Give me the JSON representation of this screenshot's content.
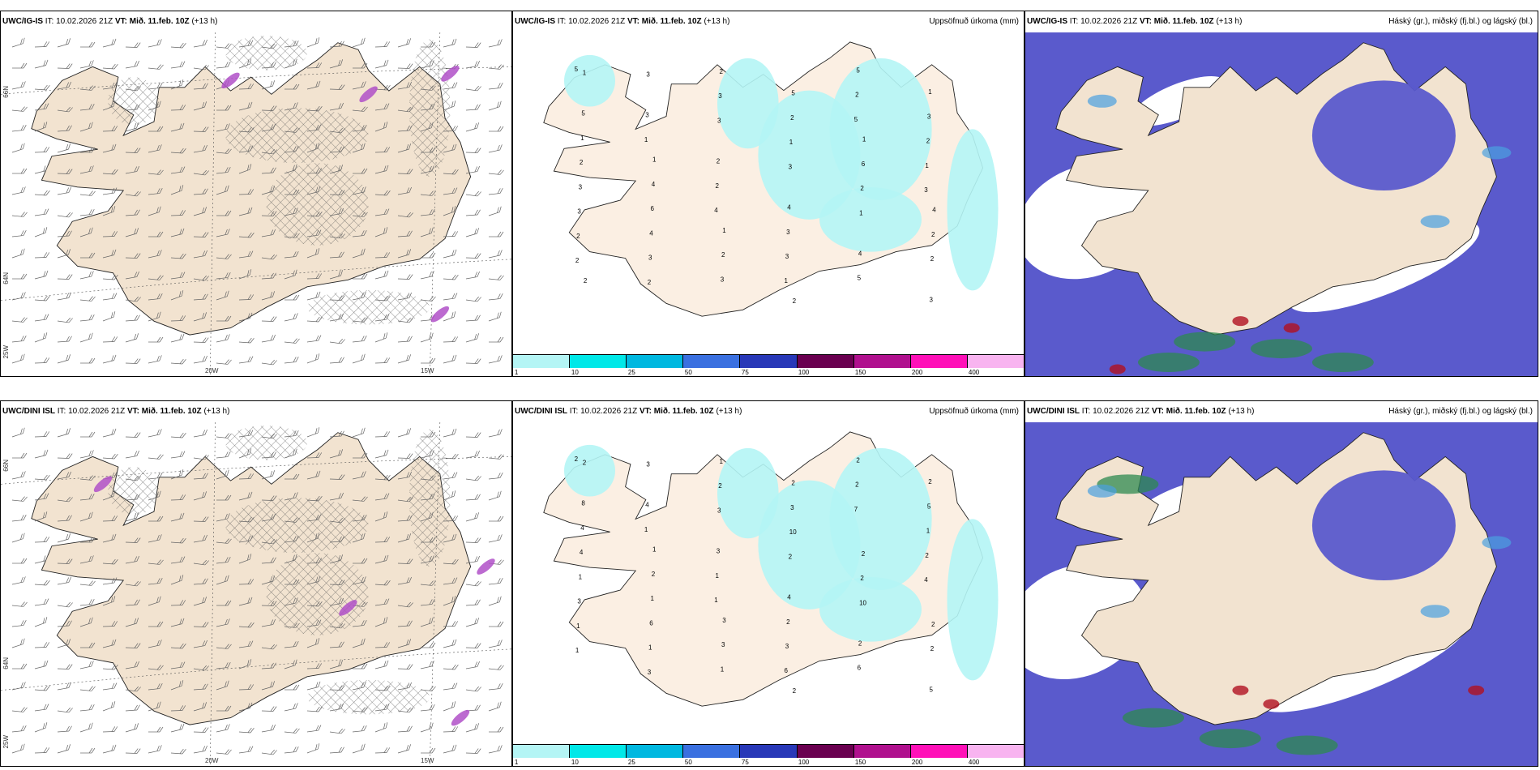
{
  "rows": [
    {
      "model": "UWC/IG-IS",
      "it": "IT: 10.02.2026 21Z",
      "vt_label": "VT:",
      "vt_value": "Mið. 11.feb. 10Z",
      "lead": "(+13 h)"
    },
    {
      "model": "UWC/DINI ISL",
      "it": "IT: 10.02.2026 21Z",
      "vt_label": "VT:",
      "vt_value": "Mið. 11.feb. 10Z",
      "lead": "(+13 h)"
    }
  ],
  "precip_title": "Uppsöfnuð úrkoma (mm)",
  "cloud_title": "Háský (gr.), miðský (fj.bl.) og lágský (bl.)",
  "axis_labels": {
    "lon_20w": "20W",
    "lon_15w": "15W",
    "lat_66n": "66N",
    "lat_64n": "64N",
    "lon_25w": "25W"
  },
  "colorbar": {
    "labels": [
      "1",
      "10",
      "25",
      "50",
      "75",
      "100",
      "150",
      "200",
      "400"
    ],
    "colors": [
      "#b4f5f5",
      "#00e8e8",
      "#00b8e0",
      "#3a70e0",
      "#2838b8",
      "#6a0050",
      "#b0108e",
      "#ff10b8",
      "#f8b4f0"
    ]
  },
  "precip_values_top": [
    "5",
    "1",
    "4",
    "1",
    "5",
    "3",
    "2",
    "3",
    "2",
    "3",
    "2",
    "1",
    "2",
    "3",
    "2",
    "3",
    "5",
    "2",
    "3",
    "2",
    "3",
    "4",
    "5",
    "3",
    "3",
    "3",
    "3",
    "3",
    "4",
    "1",
    "2",
    "4",
    "2",
    "1",
    "1",
    "3",
    "1",
    "6",
    "3",
    "2",
    "2",
    "2",
    "5",
    "4",
    "2",
    "5",
    "6",
    "2",
    "1",
    "1",
    "1",
    "2",
    "1",
    "4",
    "2"
  ],
  "precip_values_bottom": [
    "2",
    "1",
    "1",
    "6",
    "7",
    "4",
    "1",
    "4",
    "1",
    "3",
    "2",
    "2",
    "1",
    "3",
    "3",
    "2",
    "2",
    "1",
    "3",
    "3",
    "3",
    "4",
    "6",
    "5",
    "1",
    "1",
    "2",
    "2",
    "2",
    "2",
    "4",
    "6",
    "1",
    "10",
    "10",
    "5",
    "4",
    "1",
    "1",
    "3",
    "2",
    "2",
    "8",
    "2",
    "3",
    "2",
    "2",
    "2",
    "2",
    "1",
    "3",
    "2"
  ],
  "wind_colors": {
    "land": "#f2e3d0",
    "barb": "#666666",
    "hatch": "#555555",
    "purple": "#b050c8"
  },
  "cloud_colors": {
    "high": "#5a5acc",
    "mid": "#4aa0e0",
    "low": "#2e8a50",
    "red": "#b01020",
    "white": "#ffffff"
  }
}
